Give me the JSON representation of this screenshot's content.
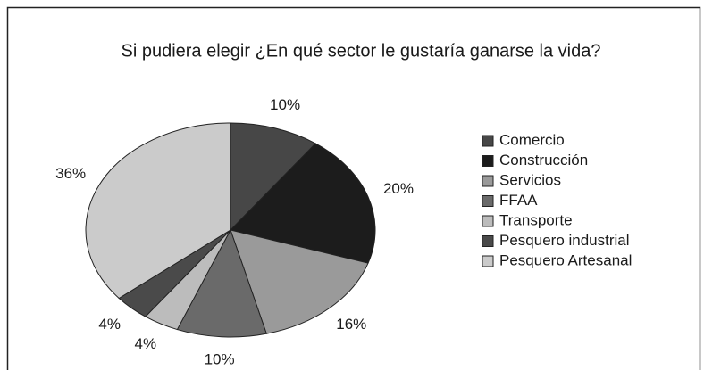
{
  "chart_data": {
    "type": "pie",
    "title": "Si pudiera elegir ¿En qué sector le gustaría ganarse la vida?",
    "categories": [
      "Comercio",
      "Construcción",
      "Servicios",
      "FFAA",
      "Transporte",
      "Pesquero industrial",
      "Pesquero Artesanal"
    ],
    "values": [
      10,
      20,
      16,
      10,
      4,
      4,
      36
    ],
    "value_labels": [
      "10%",
      "20%",
      "16%",
      "10%",
      "4%",
      "4%",
      "36%"
    ],
    "colors": [
      "#474747",
      "#1c1c1c",
      "#9a9a9a",
      "#6a6a6a",
      "#bcbcbc",
      "#4a4a4a",
      "#cbcbcb"
    ],
    "legend": "right"
  }
}
